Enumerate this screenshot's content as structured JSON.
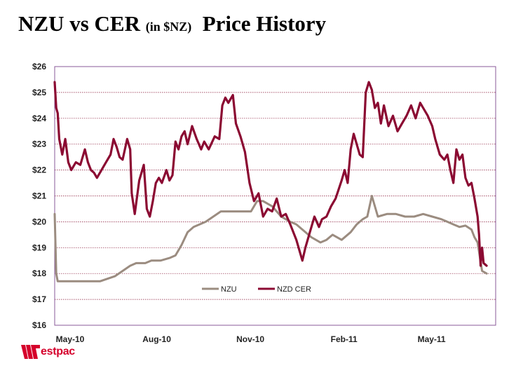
{
  "title": {
    "main": "NZU vs CER",
    "unit": "(in $NZ)",
    "suffix": "Price History"
  },
  "logo": {
    "text": "estpac"
  },
  "chart_data": {
    "type": "line",
    "title": "NZU vs CER (in $NZ) Price History",
    "xlabel": "",
    "ylabel": "",
    "ylim": [
      16,
      26
    ],
    "yticks": [
      "$16",
      "$17",
      "$18",
      "$19",
      "$20",
      "$21",
      "$22",
      "$23",
      "$24",
      "$25",
      "$26"
    ],
    "xlim": [
      0,
      14.6
    ],
    "xticks": [
      {
        "label": "May-10",
        "pos": 0.1
      },
      {
        "label": "Aug-10",
        "pos": 3.1
      },
      {
        "label": "Nov-10",
        "pos": 6.2
      },
      {
        "label": "Feb-11",
        "pos": 9.3
      },
      {
        "label": "May-11",
        "pos": 12.2
      }
    ],
    "grid": true,
    "legend": "bottom-center",
    "colors": {
      "NZU": "#9b8c80",
      "NZD CER": "#8b0a32",
      "grid": "#8a1a3a",
      "frame": "#8a5a98"
    },
    "series": [
      {
        "name": "NZU",
        "x": [
          0,
          0.05,
          0.1,
          0.5,
          1.0,
          1.5,
          2.0,
          2.5,
          2.7,
          3.0,
          3.2,
          3.5,
          3.8,
          4.0,
          4.2,
          4.4,
          4.6,
          5.0,
          5.5,
          6.0,
          6.5,
          6.7,
          6.9,
          7.2,
          7.5,
          7.8,
          8.0,
          8.2,
          8.5,
          8.8,
          9.0,
          9.2,
          9.5,
          9.8,
          10.0,
          10.2,
          10.35,
          10.5,
          10.7,
          11.0,
          11.3,
          11.6,
          11.9,
          12.2,
          12.5,
          12.8,
          13.0,
          13.2,
          13.4,
          13.6,
          13.8,
          13.9,
          14.0,
          14.15,
          14.3
        ],
        "y": [
          20.3,
          18.0,
          17.7,
          17.7,
          17.7,
          17.7,
          17.9,
          18.3,
          18.4,
          18.4,
          18.5,
          18.5,
          18.6,
          18.7,
          19.1,
          19.6,
          19.8,
          20.0,
          20.4,
          20.4,
          20.4,
          20.8,
          20.8,
          20.6,
          20.2,
          20.0,
          19.9,
          19.7,
          19.4,
          19.2,
          19.3,
          19.5,
          19.3,
          19.6,
          19.9,
          20.1,
          20.2,
          21.0,
          20.2,
          20.3,
          20.3,
          20.2,
          20.2,
          20.3,
          20.2,
          20.1,
          20.0,
          19.9,
          19.8,
          19.85,
          19.7,
          19.4,
          19.2,
          18.1,
          18.0
        ]
      },
      {
        "name": "NZD CER",
        "x": [
          0,
          0.05,
          0.1,
          0.15,
          0.25,
          0.35,
          0.45,
          0.55,
          0.7,
          0.85,
          1.0,
          1.1,
          1.2,
          1.3,
          1.4,
          1.55,
          1.7,
          1.85,
          1.95,
          2.05,
          2.15,
          2.25,
          2.4,
          2.5,
          2.55,
          2.65,
          2.8,
          2.95,
          3.05,
          3.15,
          3.25,
          3.35,
          3.45,
          3.55,
          3.7,
          3.8,
          3.9,
          4.0,
          4.1,
          4.2,
          4.3,
          4.4,
          4.55,
          4.7,
          4.85,
          4.95,
          5.1,
          5.3,
          5.45,
          5.55,
          5.65,
          5.75,
          5.9,
          6.0,
          6.15,
          6.3,
          6.45,
          6.6,
          6.75,
          6.9,
          7.05,
          7.2,
          7.35,
          7.5,
          7.65,
          7.8,
          8.0,
          8.1,
          8.2,
          8.3,
          8.45,
          8.6,
          8.75,
          8.85,
          9.0,
          9.15,
          9.3,
          9.5,
          9.6,
          9.7,
          9.8,
          9.9,
          10.0,
          10.1,
          10.2,
          10.3,
          10.4,
          10.5,
          10.6,
          10.7,
          10.8,
          10.9,
          11.05,
          11.2,
          11.35,
          11.5,
          11.65,
          11.8,
          11.95,
          12.1,
          12.2,
          12.35,
          12.5,
          12.6,
          12.75,
          12.9,
          13.0,
          13.1,
          13.2,
          13.3,
          13.4,
          13.5,
          13.6,
          13.7,
          13.8,
          13.9,
          14.0,
          14.05,
          14.1,
          14.15,
          14.2,
          14.3
        ],
        "y": [
          25.4,
          24.4,
          24.2,
          23.2,
          22.6,
          23.2,
          22.3,
          22.0,
          22.3,
          22.2,
          22.8,
          22.3,
          22.0,
          21.9,
          21.7,
          22.0,
          22.3,
          22.6,
          23.2,
          22.9,
          22.5,
          22.4,
          23.2,
          22.8,
          21.1,
          20.3,
          21.6,
          22.2,
          20.5,
          20.2,
          20.8,
          21.5,
          21.7,
          21.5,
          22.0,
          21.6,
          21.8,
          23.1,
          22.8,
          23.3,
          23.5,
          23.0,
          23.7,
          23.2,
          22.8,
          23.1,
          22.8,
          23.3,
          23.2,
          24.5,
          24.8,
          24.6,
          24.9,
          23.8,
          23.3,
          22.7,
          21.5,
          20.8,
          21.1,
          20.2,
          20.5,
          20.4,
          20.9,
          20.2,
          20.3,
          19.9,
          19.3,
          18.9,
          18.5,
          19.0,
          19.6,
          20.2,
          19.8,
          20.1,
          20.2,
          20.6,
          20.9,
          21.6,
          22.0,
          21.5,
          22.8,
          23.4,
          23.0,
          22.6,
          22.5,
          25.0,
          25.4,
          25.1,
          24.4,
          24.6,
          23.8,
          24.5,
          23.7,
          24.1,
          23.5,
          23.8,
          24.1,
          24.5,
          24.0,
          24.6,
          24.4,
          24.1,
          23.7,
          23.2,
          22.6,
          22.4,
          22.6,
          22.0,
          21.5,
          22.8,
          22.4,
          22.6,
          21.7,
          21.4,
          21.5,
          20.9,
          20.2,
          19.5,
          18.3,
          19.0,
          18.4,
          18.3
        ]
      }
    ]
  }
}
